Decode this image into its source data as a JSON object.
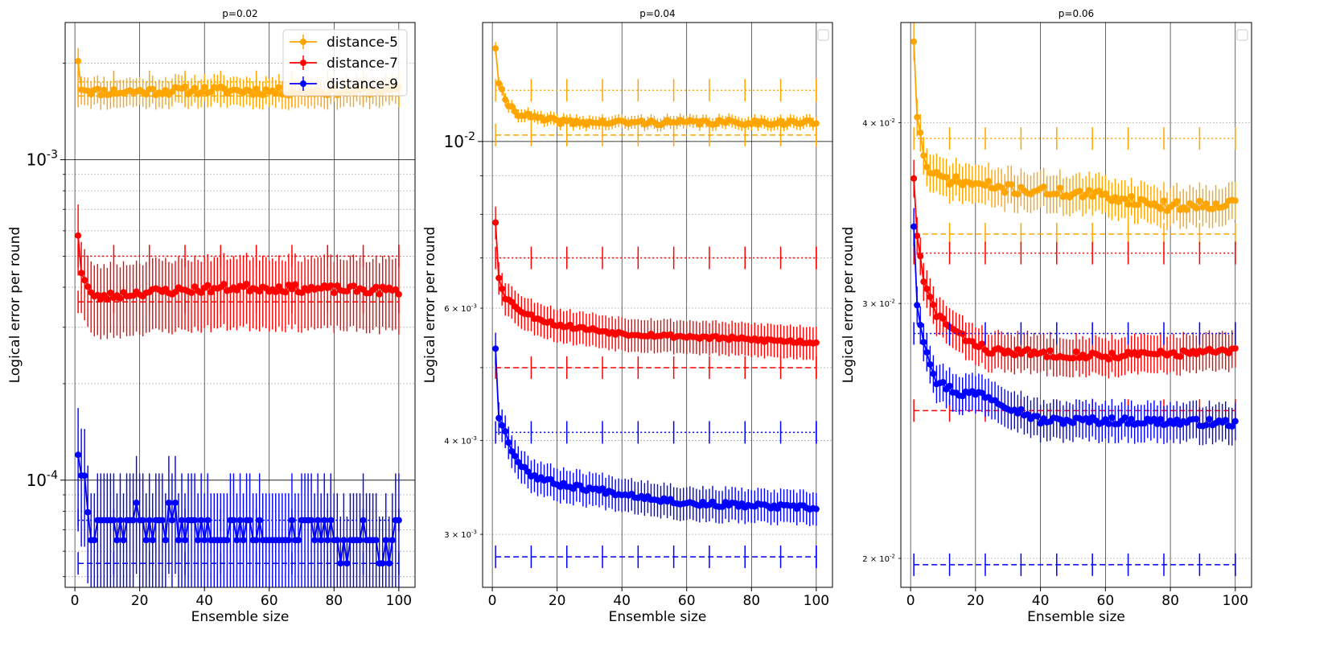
{
  "chart_data": [
    {
      "type": "line",
      "title": "p=0.02",
      "xlabel": "Ensemble size",
      "ylabel": "Logical error per round",
      "yscale": "log",
      "xlim": [
        -3,
        105
      ],
      "ylim": [
        4.63e-05,
        0.00268
      ],
      "xticks": [
        0,
        20,
        40,
        60,
        80,
        100
      ],
      "xtick_labels": [
        "0",
        "20",
        "40",
        "60",
        "80",
        "100"
      ],
      "ymajor_ticks": [
        0.0001,
        0.001
      ],
      "ymajor_labels": [
        "10^{-4}",
        "10^{-3}"
      ],
      "yminor_ticks": [
        5e-05,
        6e-05,
        7e-05,
        8e-05,
        9e-05,
        0.0002,
        0.0003,
        0.0004,
        0.0005,
        0.0006,
        0.0007,
        0.0008,
        0.0009,
        0.002
      ],
      "yminor_labels": [],
      "grid": true,
      "legend": {
        "show": true,
        "location": "top-right"
      },
      "series": [
        {
          "name": "distance-5",
          "color": "#ffa500",
          "start": 0.00203,
          "anchors": [
            [
              1,
              0.00203
            ],
            [
              2,
              0.00168
            ],
            [
              6,
              0.00163
            ],
            [
              15,
              0.00163
            ],
            [
              40,
              0.00165
            ],
            [
              70,
              0.00163
            ],
            [
              100,
              0.00165
            ]
          ],
          "noise": 0.03,
          "err": 0.1,
          "seed": 11,
          "refs": [
            {
              "value": 0.00175,
              "style": "dotted"
            },
            {
              "value": 0.00158,
              "style": "dashed"
            }
          ]
        },
        {
          "name": "distance-7",
          "color": "#ff0000",
          "start": 0.00058,
          "anchors": [
            [
              1,
              0.00058
            ],
            [
              2,
              0.00045
            ],
            [
              4,
              0.0004
            ],
            [
              6,
              0.00037
            ],
            [
              20,
              0.000385
            ],
            [
              50,
              0.0004
            ],
            [
              100,
              0.00039
            ]
          ],
          "noise": 0.03,
          "err": 0.25,
          "seed": 23,
          "refs": [
            {
              "value": 0.0005,
              "style": "dotted"
            },
            {
              "value": 0.00036,
              "style": "dashed"
            }
          ]
        },
        {
          "name": "distance-9",
          "color": "#0000ff",
          "start": 0.00012,
          "anchors": [
            [
              1,
              0.00012
            ],
            [
              2,
              0.00011
            ],
            [
              3,
              0.0001
            ],
            [
              5,
              7.5e-05
            ],
            [
              100,
              6.5e-05
            ]
          ],
          "noise": 0.12,
          "err": 0.4,
          "seed": 37,
          "quantize": [
            5.5e-05,
            6.5e-05,
            7.5e-05,
            8.5e-05
          ],
          "quantize_from": 5,
          "refs": [
            {
              "value": 7.5e-05,
              "style": "dotted"
            },
            {
              "value": 5.5e-05,
              "style": "dashed"
            }
          ]
        }
      ]
    },
    {
      "type": "line",
      "title": "p=0.04",
      "xlabel": "Ensemble size",
      "ylabel": "Logical error per round",
      "yscale": "log",
      "xlim": [
        -3,
        105
      ],
      "ylim": [
        0.00255,
        0.0144
      ],
      "xticks": [
        0,
        20,
        40,
        60,
        80,
        100
      ],
      "xtick_labels": [
        "0",
        "20",
        "40",
        "60",
        "80",
        "100"
      ],
      "ymajor_ticks": [
        0.01
      ],
      "ymajor_labels": [
        "10^{-2}"
      ],
      "yminor_ticks": [
        0.003,
        0.004,
        0.005,
        0.006,
        0.007,
        0.008,
        0.009
      ],
      "yminor_labels": [
        "3 × 10^{-3}",
        "4 × 10^{-3}",
        "",
        "6 × 10^{-3}",
        "",
        "",
        ""
      ],
      "grid": true,
      "legend": {
        "show": true,
        "location": "top-right",
        "entries": []
      },
      "series": [
        {
          "name": "distance-5",
          "color": "#ffa500",
          "start": 0.0133,
          "anchors": [
            [
              1,
              0.0133
            ],
            [
              2,
              0.012
            ],
            [
              4,
              0.0113
            ],
            [
              8,
              0.0109
            ],
            [
              15,
              0.0107
            ],
            [
              25,
              0.0106
            ],
            [
              60,
              0.0106
            ],
            [
              100,
              0.0106
            ]
          ],
          "noise": 0.008,
          "err": 0.02,
          "seed": 41,
          "refs": [
            {
              "value": 0.0117,
              "style": "dotted"
            },
            {
              "value": 0.0102,
              "style": "dashed"
            }
          ]
        },
        {
          "name": "distance-7",
          "color": "#ff0000",
          "start": 0.0078,
          "anchors": [
            [
              1,
              0.0078
            ],
            [
              2,
              0.0066
            ],
            [
              4,
              0.0062
            ],
            [
              10,
              0.0059
            ],
            [
              20,
              0.0057
            ],
            [
              40,
              0.00555
            ],
            [
              100,
              0.0054
            ]
          ],
          "noise": 0.006,
          "err": 0.05,
          "seed": 53,
          "refs": [
            {
              "value": 0.007,
              "style": "dotted"
            },
            {
              "value": 0.005,
              "style": "dashed"
            }
          ]
        },
        {
          "name": "distance-9",
          "color": "#0000ff",
          "start": 0.0053,
          "anchors": [
            [
              1,
              0.0053
            ],
            [
              2,
              0.0043
            ],
            [
              4,
              0.0041
            ],
            [
              7,
              0.0038
            ],
            [
              12,
              0.0036
            ],
            [
              20,
              0.0035
            ],
            [
              40,
              0.0034
            ],
            [
              60,
              0.0033
            ],
            [
              100,
              0.00325
            ]
          ],
          "noise": 0.008,
          "err": 0.05,
          "seed": 67,
          "refs": [
            {
              "value": 0.0041,
              "style": "dotted"
            },
            {
              "value": 0.0028,
              "style": "dashed"
            }
          ]
        }
      ]
    },
    {
      "type": "line",
      "title": "p=0.06",
      "xlabel": "Ensemble size",
      "ylabel": "Logical error per round",
      "yscale": "log",
      "xlim": [
        -3,
        105
      ],
      "ylim": [
        0.0191,
        0.0469
      ],
      "xticks": [
        0,
        20,
        40,
        60,
        80,
        100
      ],
      "xtick_labels": [
        "0",
        "20",
        "40",
        "60",
        "80",
        "100"
      ],
      "ymajor_ticks": [],
      "ymajor_labels": [],
      "yminor_ticks": [
        0.02,
        0.03,
        0.04
      ],
      "yminor_labels": [
        "2 × 10^{-2}",
        "3 × 10^{-2}",
        "4 × 10^{-2}"
      ],
      "grid": true,
      "legend": {
        "show": true,
        "location": "top-right",
        "entries": []
      },
      "series": [
        {
          "name": "distance-5",
          "color": "#ffa500",
          "start": 0.0455,
          "anchors": [
            [
              1,
              0.0455
            ],
            [
              2,
              0.0405
            ],
            [
              4,
              0.038
            ],
            [
              6,
              0.0368
            ],
            [
              15,
              0.0364
            ],
            [
              30,
              0.036
            ],
            [
              60,
              0.0356
            ],
            [
              80,
              0.035
            ],
            [
              100,
              0.0352
            ]
          ],
          "noise": 0.008,
          "err": 0.03,
          "seed": 71,
          "refs": [
            {
              "value": 0.039,
              "style": "dotted"
            },
            {
              "value": 0.0335,
              "style": "dashed"
            }
          ]
        },
        {
          "name": "distance-7",
          "color": "#ff0000",
          "start": 0.0366,
          "anchors": [
            [
              1,
              0.0366
            ],
            [
              2,
              0.0335
            ],
            [
              4,
              0.031
            ],
            [
              8,
              0.0295
            ],
            [
              15,
              0.0285
            ],
            [
              25,
              0.0278
            ],
            [
              60,
              0.0276
            ],
            [
              100,
              0.0278
            ]
          ],
          "noise": 0.006,
          "err": 0.03,
          "seed": 83,
          "refs": [
            {
              "value": 0.0325,
              "style": "dotted"
            },
            {
              "value": 0.0253,
              "style": "dashed"
            }
          ]
        },
        {
          "name": "distance-9",
          "color": "#0000ff",
          "start": 0.0339,
          "anchors": [
            [
              1,
              0.0339
            ],
            [
              2,
              0.03
            ],
            [
              4,
              0.0283
            ],
            [
              8,
              0.0265
            ],
            [
              15,
              0.026
            ],
            [
              22,
              0.026
            ],
            [
              30,
              0.0255
            ],
            [
              40,
              0.0249
            ],
            [
              60,
              0.0249
            ],
            [
              100,
              0.0248
            ]
          ],
          "noise": 0.006,
          "err": 0.03,
          "seed": 97,
          "refs": [
            {
              "value": 0.0286,
              "style": "dotted"
            },
            {
              "value": 0.0198,
              "style": "dashed"
            }
          ]
        }
      ]
    }
  ]
}
